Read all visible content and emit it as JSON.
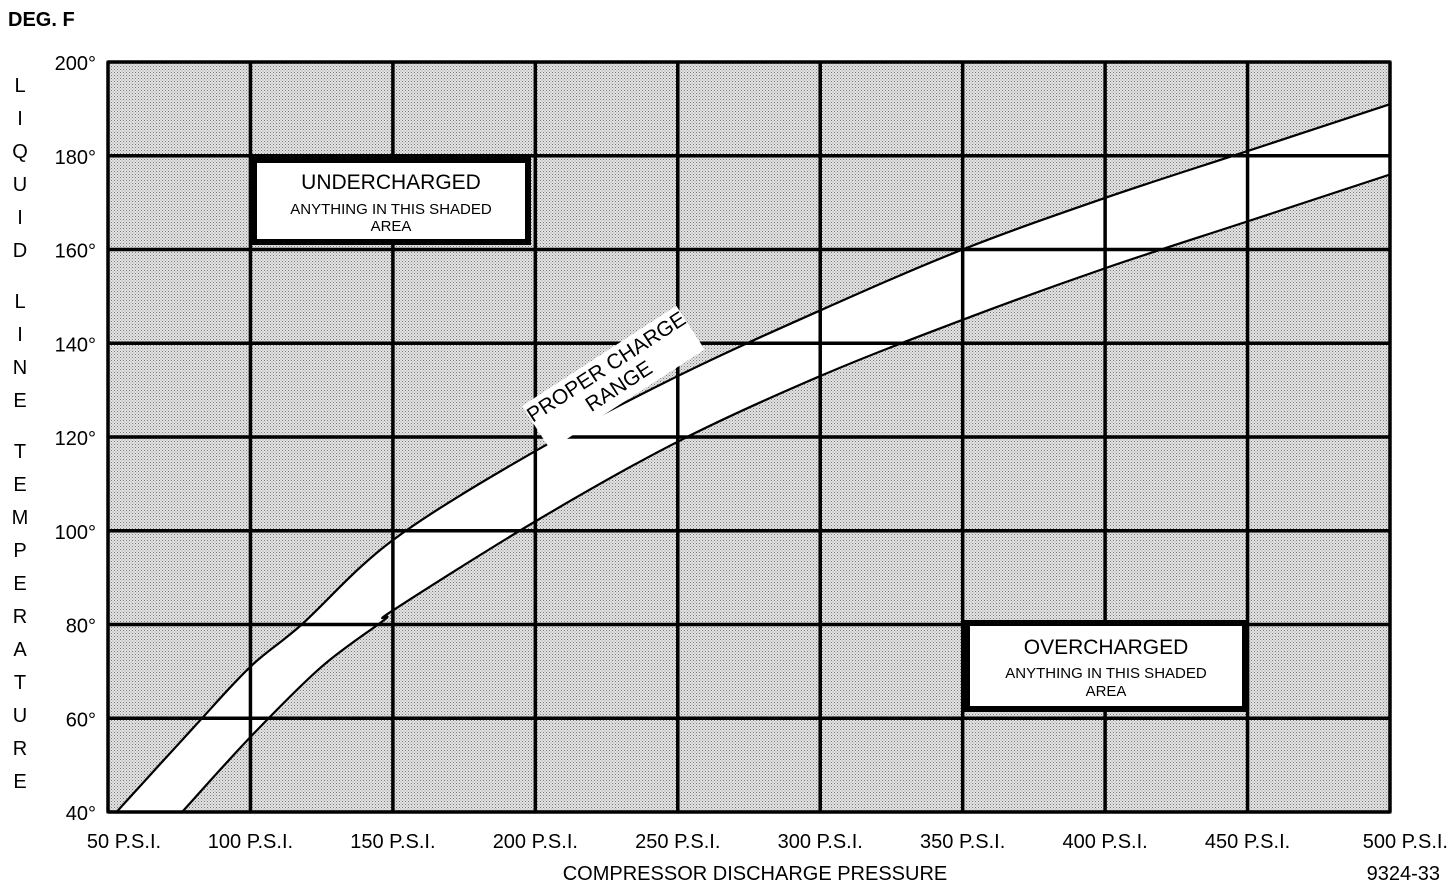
{
  "chart_data": {
    "type": "area",
    "title": "",
    "ylabel": "LIQUID LINE TEMPERATURE",
    "yunit": "DEG. F",
    "xlabel": "COMPRESSOR DISCHARGE PRESSURE",
    "figure_id": "9324-33",
    "xlim": [
      50,
      500
    ],
    "ylim": [
      40,
      200
    ],
    "x_ticks": [
      50,
      100,
      150,
      200,
      250,
      300,
      350,
      400,
      450,
      500
    ],
    "x_tick_labels": [
      "50 P.S.I.",
      "100 P.S.I.",
      "150 P.S.I.",
      "200 P.S.I.",
      "250 P.S.I.",
      "300 P.S.I.",
      "350 P.S.I.",
      "400 P.S.I.",
      "450 P.S.I.",
      "500 P.S.I."
    ],
    "y_ticks": [
      40,
      60,
      80,
      100,
      120,
      140,
      160,
      180,
      200
    ],
    "y_tick_labels": [
      "40°",
      "60°",
      "80°",
      "100°",
      "120°",
      "140°",
      "160°",
      "180°",
      "200°"
    ],
    "grid": true,
    "band_label": "PROPER CHARGE RANGE",
    "series": [
      {
        "name": "upper limit",
        "x": [
          53,
          80,
          100,
          118,
          150,
          200,
          250,
          300,
          350,
          400,
          450,
          500
        ],
        "y": [
          40,
          58,
          71,
          80,
          98,
          117,
          133,
          147,
          160,
          171,
          181,
          191
        ]
      },
      {
        "name": "lower limit",
        "x": [
          76,
          100,
          125,
          147,
          150,
          200,
          250,
          300,
          350,
          400,
          450,
          500
        ],
        "y": [
          40,
          56,
          71,
          81,
          83,
          102,
          119,
          133,
          145,
          156,
          166,
          176
        ]
      }
    ],
    "annotations": [
      {
        "title": "UNDERCHARGED",
        "text": "ANYTHING IN THIS SHADED AREA"
      },
      {
        "title": "OVERCHARGED",
        "text": "ANYTHING IN THIS SHADED AREA"
      }
    ],
    "colors": {
      "shade": "#d2d2d2",
      "line": "#000000",
      "band": "#ffffff"
    }
  }
}
